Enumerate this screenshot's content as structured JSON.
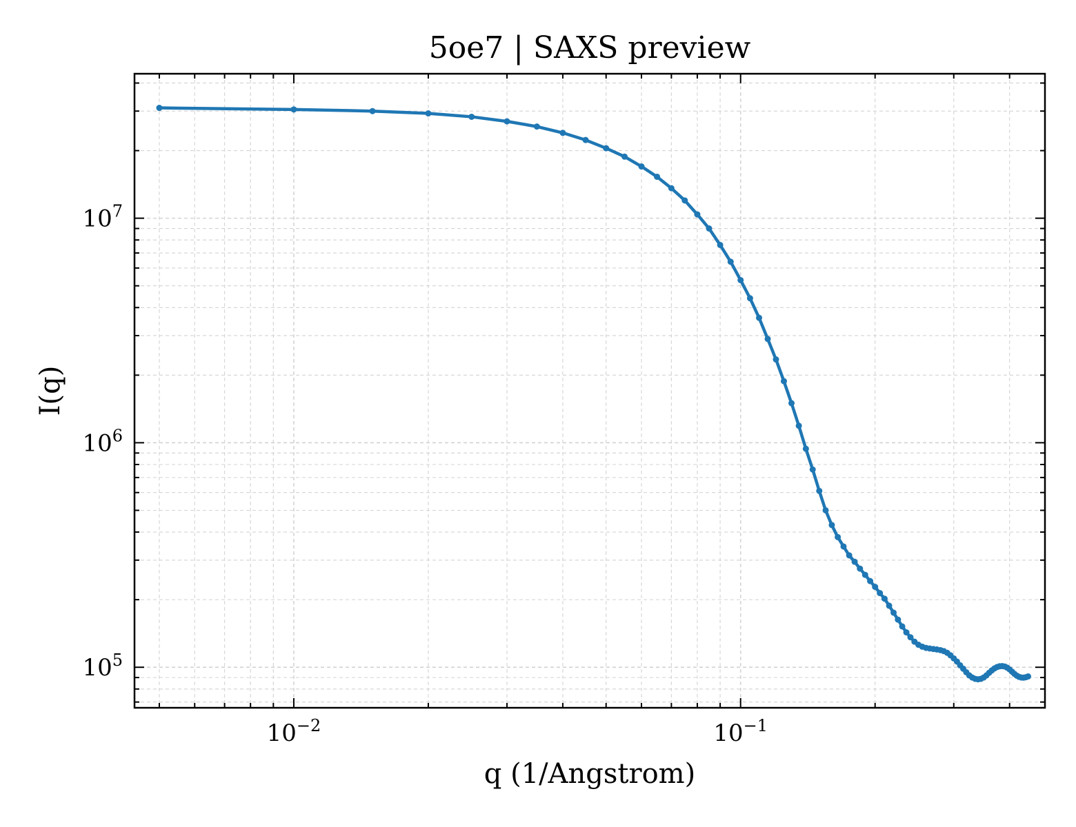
{
  "chart_data": {
    "type": "line",
    "title": "5oe7 | SAXS preview",
    "xlabel": "q (1/Angstrom)",
    "ylabel": "I(q)",
    "xscale": "log",
    "yscale": "log",
    "xlim": [
      0.0044,
      0.48
    ],
    "ylim": [
      66000,
      44000000
    ],
    "grid": true,
    "legend": "none",
    "colors": {
      "series": "#1f77b4",
      "grid": "#d3d3d3",
      "axes": "#000000"
    },
    "x_ticks": [
      {
        "base": "10",
        "exp": "−2",
        "value": 0.01
      },
      {
        "base": "10",
        "exp": "−1",
        "value": 0.1
      }
    ],
    "y_ticks": [
      {
        "base": "10",
        "exp": "5",
        "value": 100000
      },
      {
        "base": "10",
        "exp": "6",
        "value": 1000000
      },
      {
        "base": "10",
        "exp": "7",
        "value": 10000000
      }
    ],
    "series": [
      {
        "marker": "o",
        "points": [
          [
            0.005,
            31000000
          ],
          [
            0.01,
            30500000
          ],
          [
            0.015,
            30000000
          ],
          [
            0.02,
            29300000
          ],
          [
            0.025,
            28300000
          ],
          [
            0.03,
            27000000
          ],
          [
            0.035,
            25600000
          ],
          [
            0.04,
            24000000
          ],
          [
            0.045,
            22300000
          ],
          [
            0.05,
            20500000
          ],
          [
            0.055,
            18800000
          ],
          [
            0.06,
            17000000
          ],
          [
            0.065,
            15300000
          ],
          [
            0.07,
            13600000
          ],
          [
            0.075,
            12000000
          ],
          [
            0.08,
            10400000
          ],
          [
            0.085,
            9000000
          ],
          [
            0.09,
            7600000
          ],
          [
            0.095,
            6400000
          ],
          [
            0.1,
            5300000
          ],
          [
            0.105,
            4400000
          ],
          [
            0.11,
            3600000
          ],
          [
            0.115,
            2900000
          ],
          [
            0.12,
            2350000
          ],
          [
            0.125,
            1880000
          ],
          [
            0.13,
            1500000
          ],
          [
            0.135,
            1190000
          ],
          [
            0.14,
            940000
          ],
          [
            0.145,
            760000
          ],
          [
            0.15,
            610000
          ],
          [
            0.155,
            500000
          ],
          [
            0.16,
            430000
          ],
          [
            0.165,
            380000
          ],
          [
            0.17,
            345000
          ],
          [
            0.175,
            315000
          ],
          [
            0.18,
            295000
          ],
          [
            0.185,
            275000
          ],
          [
            0.19,
            258000
          ],
          [
            0.195,
            242000
          ],
          [
            0.2,
            228000
          ],
          [
            0.205,
            214000
          ],
          [
            0.21,
            202000
          ],
          [
            0.215,
            188000
          ],
          [
            0.22,
            175000
          ],
          [
            0.225,
            163000
          ],
          [
            0.23,
            152000
          ],
          [
            0.235,
            143000
          ],
          [
            0.24,
            136000
          ],
          [
            0.245,
            130000
          ],
          [
            0.25,
            126000
          ],
          [
            0.255,
            123500
          ],
          [
            0.26,
            122000
          ],
          [
            0.265,
            121200
          ],
          [
            0.27,
            120600
          ],
          [
            0.275,
            120000
          ],
          [
            0.28,
            119200
          ],
          [
            0.285,
            118000
          ],
          [
            0.29,
            116000
          ],
          [
            0.295,
            113000
          ],
          [
            0.3,
            109500
          ],
          [
            0.305,
            106000
          ],
          [
            0.31,
            102000
          ],
          [
            0.315,
            98500
          ],
          [
            0.32,
            95000
          ],
          [
            0.325,
            92000
          ],
          [
            0.33,
            90000
          ],
          [
            0.335,
            88800
          ],
          [
            0.34,
            88400
          ],
          [
            0.345,
            88800
          ],
          [
            0.35,
            90000
          ],
          [
            0.355,
            92000
          ],
          [
            0.36,
            94500
          ],
          [
            0.365,
            96800
          ],
          [
            0.37,
            98800
          ],
          [
            0.375,
            100200
          ],
          [
            0.38,
            101000
          ],
          [
            0.385,
            101200
          ],
          [
            0.39,
            100800
          ],
          [
            0.395,
            99600
          ],
          [
            0.4,
            97800
          ],
          [
            0.405,
            95600
          ],
          [
            0.41,
            93500
          ],
          [
            0.415,
            91800
          ],
          [
            0.42,
            90600
          ],
          [
            0.425,
            90000
          ],
          [
            0.43,
            89900
          ],
          [
            0.435,
            90300
          ],
          [
            0.44,
            91000
          ]
        ]
      }
    ]
  }
}
